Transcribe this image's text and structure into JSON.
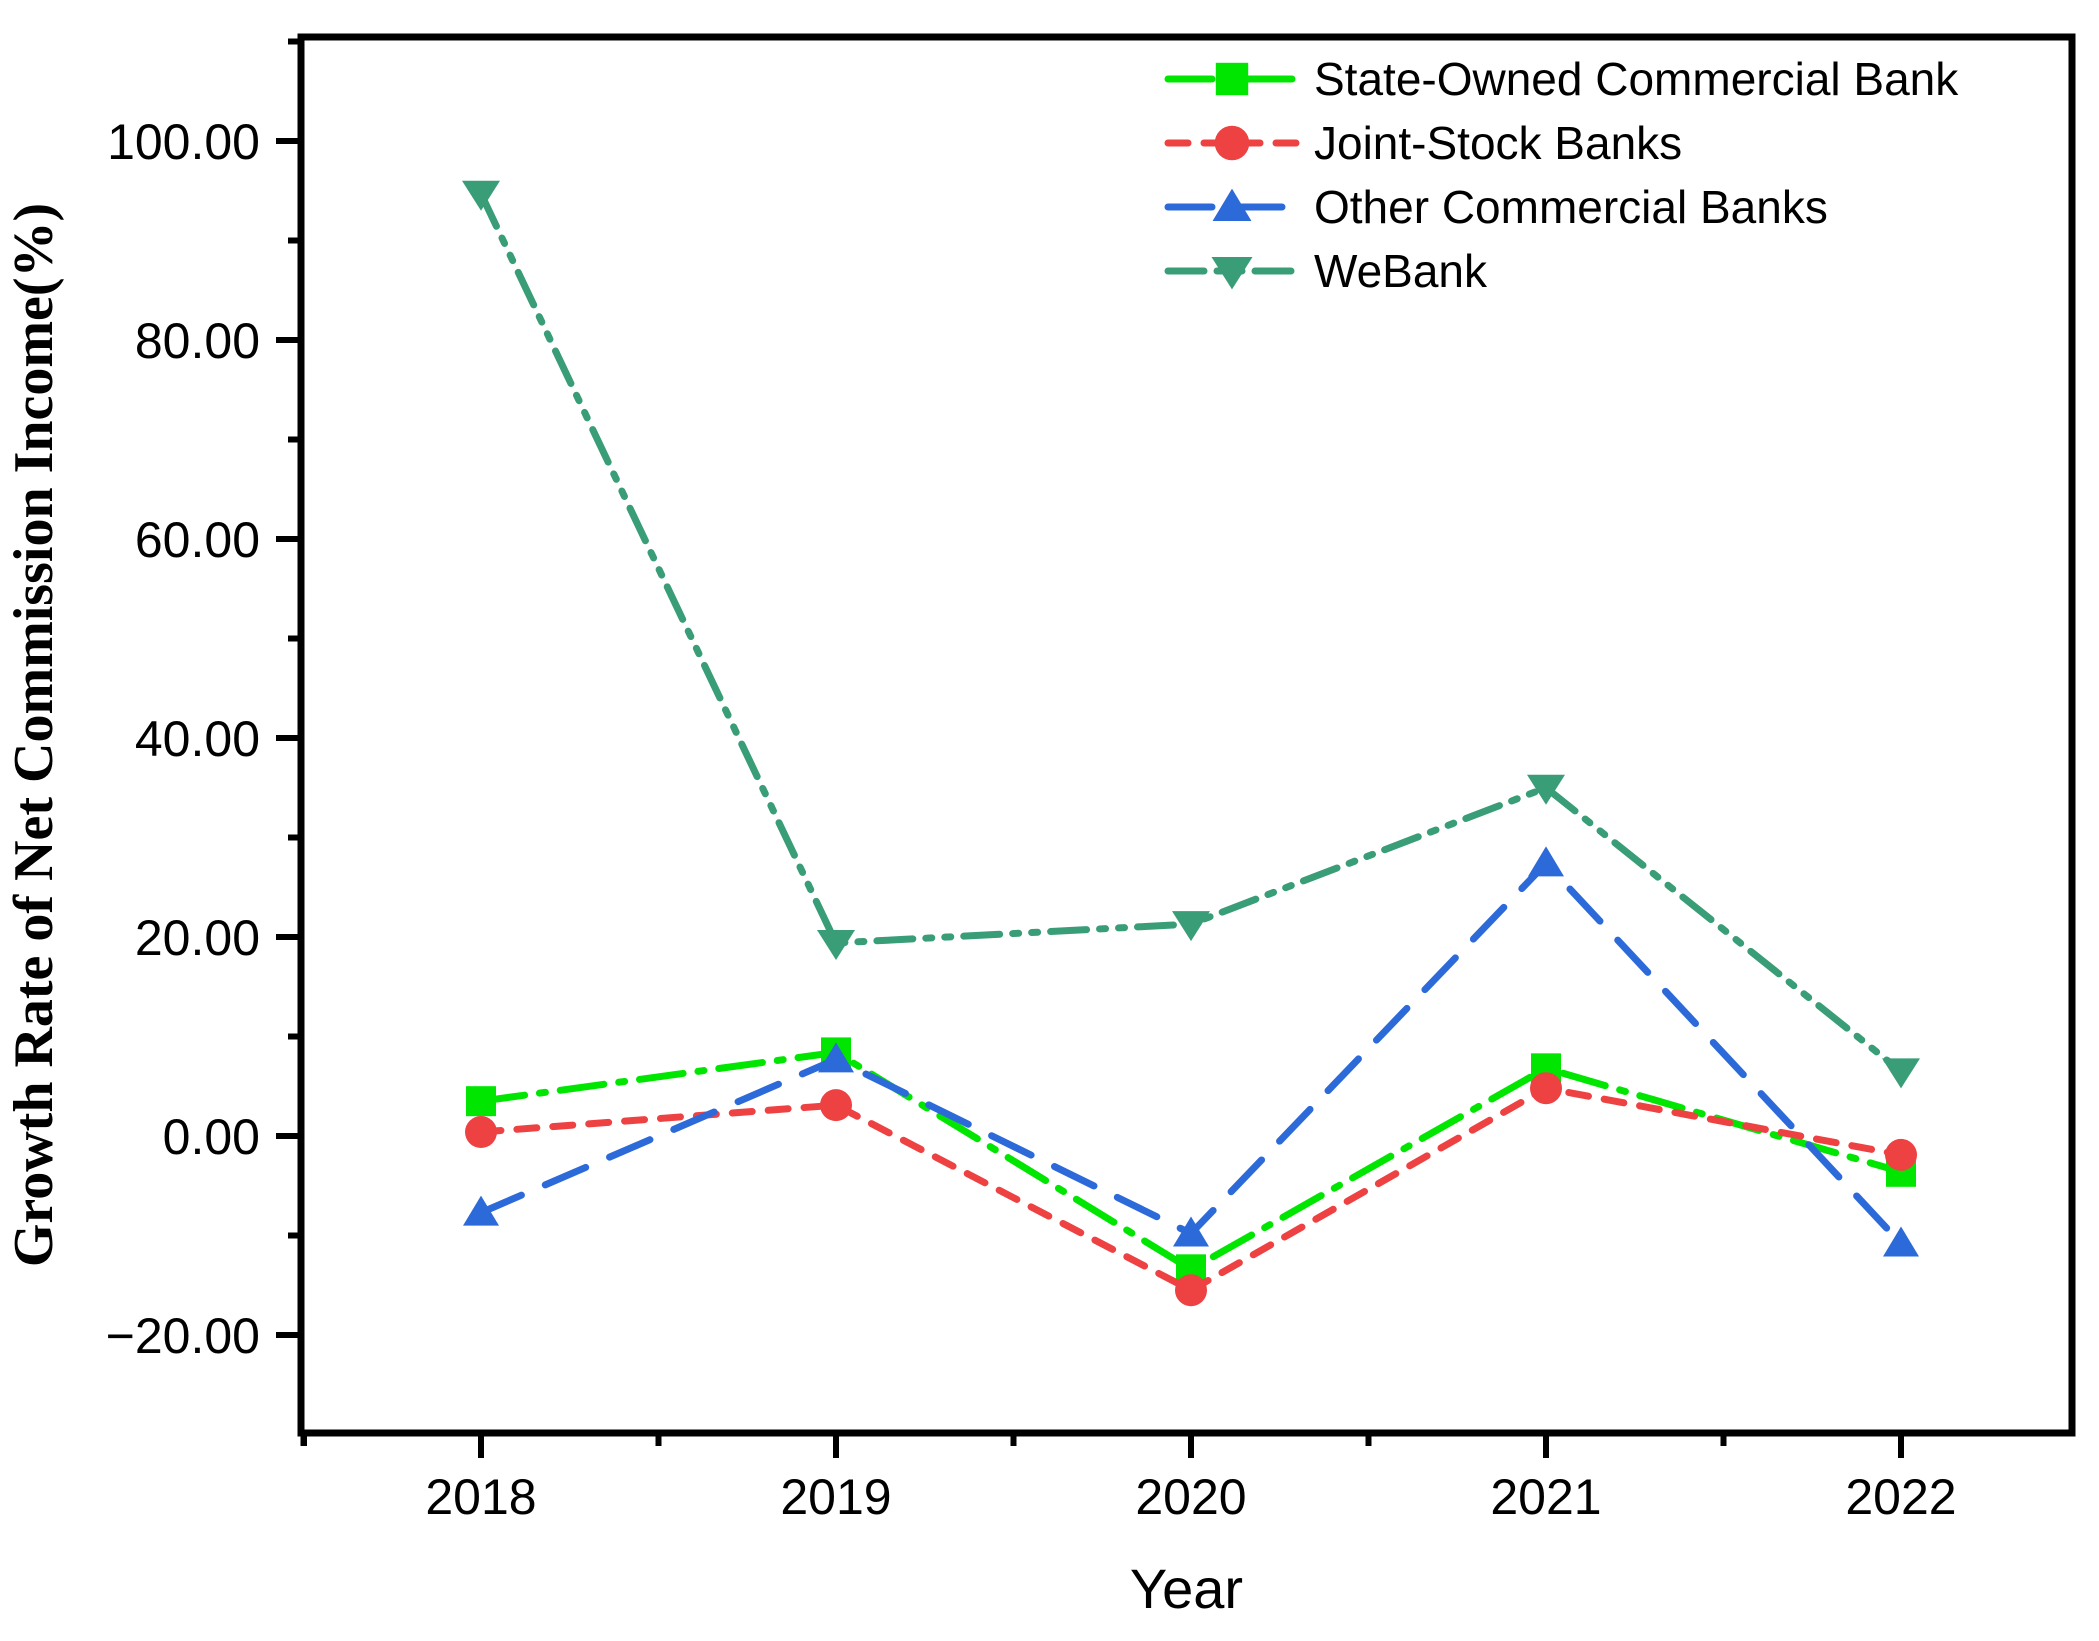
{
  "chart_data": {
    "type": "line",
    "title": "",
    "xlabel": "Year",
    "ylabel": "Growth Rate of Net Commission Income(%)",
    "categories": [
      "2018",
      "2019",
      "2020",
      "2021",
      "2022"
    ],
    "ylim": [
      -30,
      110
    ],
    "grid": false,
    "legend_position": "top-right",
    "y_major_ticks": [
      {
        "value": -20,
        "label": "−20.00"
      },
      {
        "value": 0,
        "label": "0.00"
      },
      {
        "value": 20,
        "label": "20.00"
      },
      {
        "value": 40,
        "label": "40.00"
      },
      {
        "value": 60,
        "label": "60.00"
      },
      {
        "value": 80,
        "label": "80.00"
      },
      {
        "value": 100,
        "label": "100.00"
      }
    ],
    "y_minor_ticks": [
      -10,
      10,
      30,
      50,
      70,
      90,
      110
    ],
    "series": [
      {
        "name": "State-Owned Commercial Bank",
        "slug": "state-owned-commercial-bank",
        "color": "#00E600",
        "marker": "square",
        "line_style": "dash-dot",
        "values": [
          3.5,
          8.4,
          -13.4,
          6.8,
          -3.6
        ]
      },
      {
        "name": "Joint-Stock Banks",
        "slug": "joint-stock-banks",
        "color": "#ED4142",
        "marker": "circle",
        "line_style": "dashed",
        "values": [
          0.4,
          3.1,
          -15.5,
          4.8,
          -1.9
        ]
      },
      {
        "name": "Other Commercial Banks",
        "slug": "other-commercial-banks",
        "color": "#2D6AD9",
        "marker": "triangle-up",
        "line_style": "long-dash",
        "values": [
          -7.7,
          7.7,
          -9.8,
          27.4,
          -10.8
        ]
      },
      {
        "name": "WeBank",
        "slug": "webank",
        "color": "#399D78",
        "marker": "triangle-down",
        "line_style": "dash-dot-dot",
        "values": [
          94.7,
          19.4,
          21.3,
          35.0,
          6.5
        ]
      }
    ]
  }
}
